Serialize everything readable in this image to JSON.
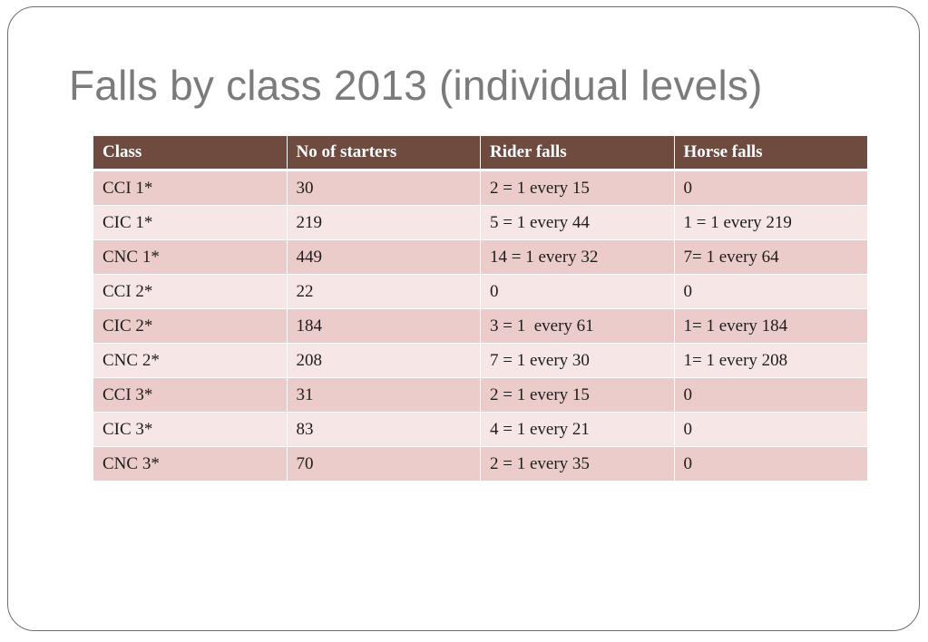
{
  "slide": {
    "title": "Falls by class 2013 (individual levels)"
  },
  "table": {
    "headers": [
      "Class",
      "No of starters",
      "Rider falls",
      "Horse falls"
    ],
    "rows": [
      [
        "CCI 1*",
        "30",
        "2 = 1 every 15",
        "0"
      ],
      [
        "CIC 1*",
        "219",
        "5 = 1 every 44",
        "1 = 1 every 219"
      ],
      [
        "CNC 1*",
        "449",
        "14 = 1 every 32",
        "7= 1 every 64"
      ],
      [
        "CCI 2*",
        "22",
        "0",
        "0"
      ],
      [
        "CIC 2*",
        "184",
        "3 = 1  every 61",
        "1= 1 every 184"
      ],
      [
        "CNC 2*",
        "208",
        "7 = 1 every 30",
        "1= 1 every 208"
      ],
      [
        "CCI 3*",
        "31",
        "2 = 1 every 15",
        "0"
      ],
      [
        "CIC 3*",
        "83",
        "4 = 1 every 21",
        "0"
      ],
      [
        "CNC 3*",
        "70",
        "2 = 1 every 35",
        "0"
      ]
    ]
  }
}
